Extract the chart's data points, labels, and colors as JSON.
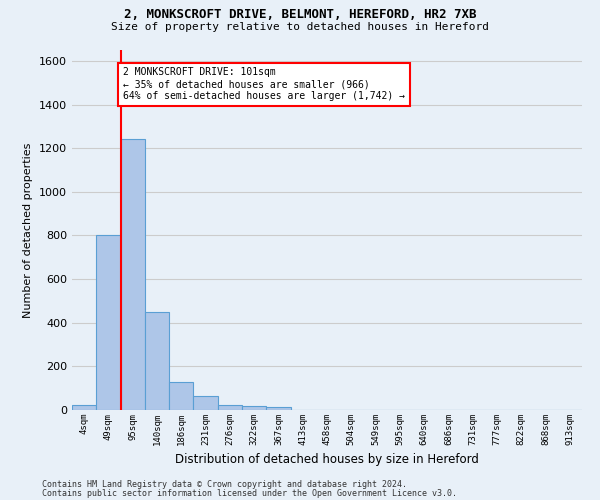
{
  "title1": "2, MONKSCROFT DRIVE, BELMONT, HEREFORD, HR2 7XB",
  "title2": "Size of property relative to detached houses in Hereford",
  "xlabel": "Distribution of detached houses by size in Hereford",
  "ylabel": "Number of detached properties",
  "bin_labels": [
    "4sqm",
    "49sqm",
    "95sqm",
    "140sqm",
    "186sqm",
    "231sqm",
    "276sqm",
    "322sqm",
    "367sqm",
    "413sqm",
    "458sqm",
    "504sqm",
    "549sqm",
    "595sqm",
    "640sqm",
    "686sqm",
    "731sqm",
    "777sqm",
    "822sqm",
    "868sqm",
    "913sqm"
  ],
  "bar_values": [
    25,
    800,
    1240,
    450,
    130,
    65,
    25,
    18,
    15,
    0,
    0,
    0,
    0,
    0,
    0,
    0,
    0,
    0,
    0,
    0,
    0
  ],
  "bar_color": "#aec6e8",
  "bar_edge_color": "#5a9fd4",
  "annotation_text": "2 MONKSCROFT DRIVE: 101sqm\n← 35% of detached houses are smaller (966)\n64% of semi-detached houses are larger (1,742) →",
  "annotation_box_color": "white",
  "annotation_box_edge_color": "red",
  "vline_color": "red",
  "vline_x": 1.5,
  "ylim": [
    0,
    1650
  ],
  "yticks": [
    0,
    200,
    400,
    600,
    800,
    1000,
    1200,
    1400,
    1600
  ],
  "grid_color": "#cccccc",
  "bg_color": "#e8f0f8",
  "footnote1": "Contains HM Land Registry data © Crown copyright and database right 2024.",
  "footnote2": "Contains public sector information licensed under the Open Government Licence v3.0."
}
